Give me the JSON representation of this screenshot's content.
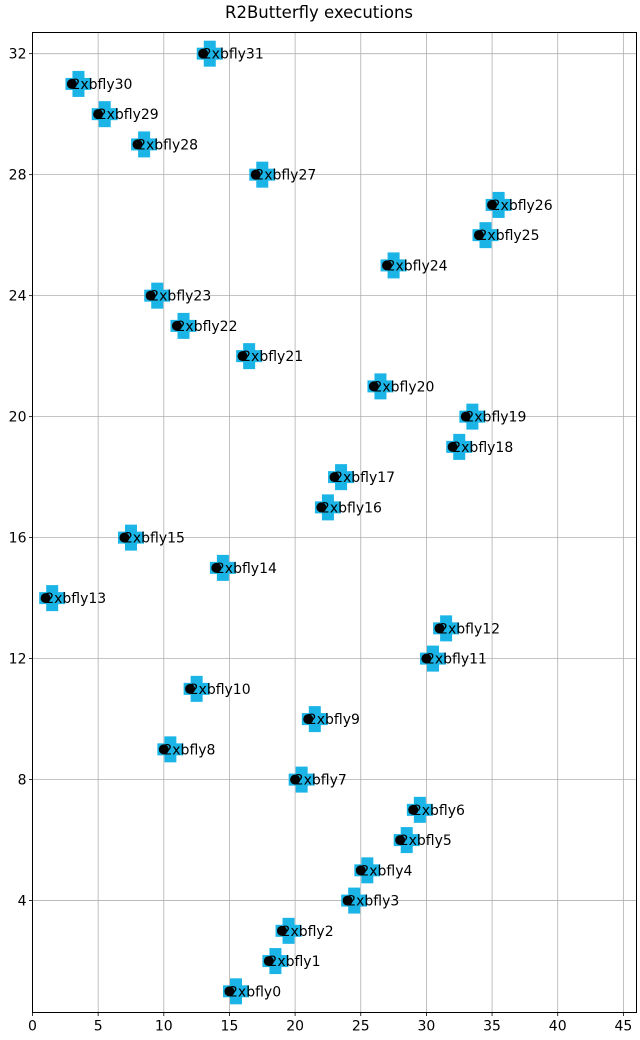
{
  "chart_data": {
    "type": "scatter",
    "title": "R2Butterfly executions",
    "xlabel": "",
    "ylabel": "",
    "xlim": [
      0,
      46
    ],
    "ylim": [
      0.3,
      32.7
    ],
    "xticks": [
      0,
      5,
      10,
      15,
      20,
      25,
      30,
      35,
      40,
      45
    ],
    "yticks": [
      4,
      8,
      12,
      16,
      20,
      24,
      28,
      32
    ],
    "grid": true,
    "marker_color": "#1ab4e6",
    "dot_color": "#000000",
    "points": [
      {
        "label": "bfly0",
        "x": 15.5,
        "y": 1
      },
      {
        "label": "bfly1",
        "x": 18.5,
        "y": 2
      },
      {
        "label": "bfly2",
        "x": 19.5,
        "y": 3
      },
      {
        "label": "bfly3",
        "x": 24.5,
        "y": 4
      },
      {
        "label": "bfly4",
        "x": 25.5,
        "y": 5
      },
      {
        "label": "bfly5",
        "x": 28.5,
        "y": 6
      },
      {
        "label": "bfly6",
        "x": 29.5,
        "y": 7
      },
      {
        "label": "bfly7",
        "x": 20.5,
        "y": 8
      },
      {
        "label": "bfly8",
        "x": 10.5,
        "y": 9
      },
      {
        "label": "bfly9",
        "x": 21.5,
        "y": 10
      },
      {
        "label": "bfly10",
        "x": 12.5,
        "y": 11
      },
      {
        "label": "bfly11",
        "x": 30.5,
        "y": 12
      },
      {
        "label": "bfly12",
        "x": 31.5,
        "y": 13
      },
      {
        "label": "bfly13",
        "x": 1.5,
        "y": 14
      },
      {
        "label": "bfly14",
        "x": 14.5,
        "y": 15
      },
      {
        "label": "bfly15",
        "x": 7.5,
        "y": 16
      },
      {
        "label": "bfly16",
        "x": 22.5,
        "y": 17
      },
      {
        "label": "bfly17",
        "x": 23.5,
        "y": 18
      },
      {
        "label": "bfly18",
        "x": 32.5,
        "y": 19
      },
      {
        "label": "bfly19",
        "x": 33.5,
        "y": 20
      },
      {
        "label": "bfly20",
        "x": 26.5,
        "y": 21
      },
      {
        "label": "bfly21",
        "x": 16.5,
        "y": 22
      },
      {
        "label": "bfly22",
        "x": 11.5,
        "y": 23
      },
      {
        "label": "bfly23",
        "x": 9.5,
        "y": 24
      },
      {
        "label": "bfly24",
        "x": 27.5,
        "y": 25
      },
      {
        "label": "bfly25",
        "x": 34.5,
        "y": 26
      },
      {
        "label": "bfly26",
        "x": 35.5,
        "y": 27
      },
      {
        "label": "bfly27",
        "x": 17.5,
        "y": 28
      },
      {
        "label": "bfly28",
        "x": 8.5,
        "y": 29
      },
      {
        "label": "bfly29",
        "x": 5.5,
        "y": 30
      },
      {
        "label": "bfly30",
        "x": 3.5,
        "y": 31
      },
      {
        "label": "bfly31",
        "x": 13.5,
        "y": 32
      }
    ]
  }
}
